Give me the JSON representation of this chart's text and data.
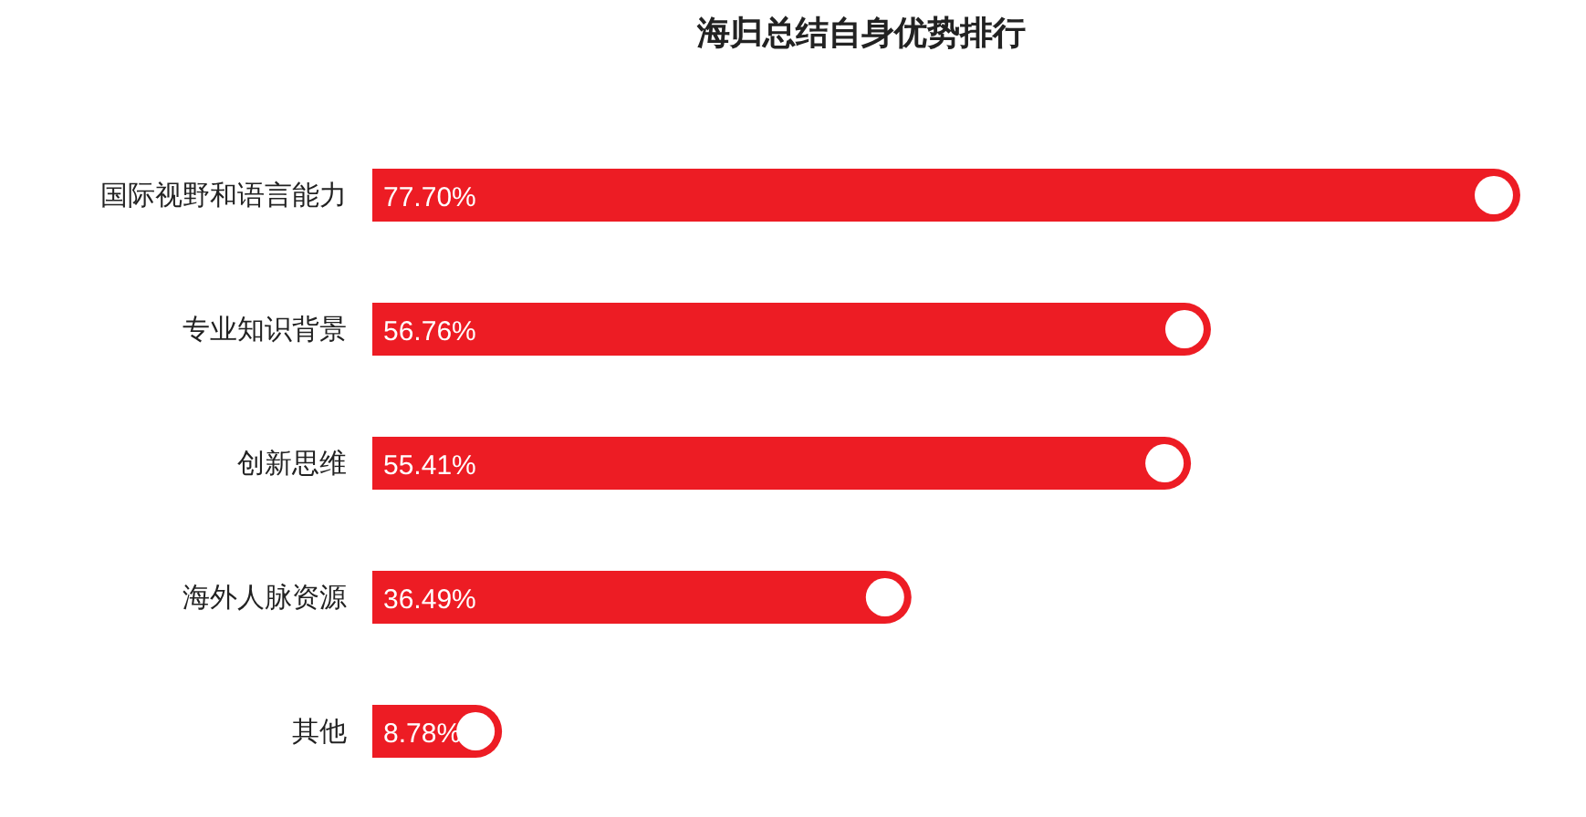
{
  "chart_data": {
    "type": "bar",
    "orientation": "horizontal",
    "title": "海归总结自身优势排行",
    "categories": [
      "国际视野和语言能力",
      "专业知识背景",
      "创新思维",
      "海外人脉资源",
      "其他"
    ],
    "values": [
      77.7,
      56.76,
      55.41,
      36.49,
      8.78
    ],
    "value_labels": [
      "77.70%",
      "56.76%",
      "55.41%",
      "36.49%",
      "8.78%"
    ],
    "color": "#ed1c24"
  }
}
